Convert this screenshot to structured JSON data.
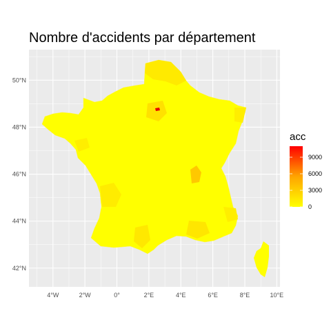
{
  "title": "Nombre d'accidents par département",
  "colors": {
    "panel_bg": "#EBEBEB",
    "grid": "#FFFFFF",
    "low": "#FFFF00",
    "mid": "#FFA500",
    "high": "#FF0000"
  },
  "axes": {
    "x_ticks": [
      "4°W",
      "2°W",
      "0°",
      "2°E",
      "4°E",
      "6°E",
      "8°E",
      "10°E"
    ],
    "y_ticks": [
      "42°N",
      "44°N",
      "46°N",
      "48°N",
      "50°N"
    ]
  },
  "legend": {
    "title": "acc",
    "ticks": [
      "9000",
      "6000",
      "3000",
      "0"
    ],
    "tick_values": [
      9000,
      6000,
      3000,
      0
    ],
    "max": 11000
  },
  "chart_data": {
    "type": "choropleth",
    "title": "Nombre d'accidents par département",
    "xlabel": "",
    "ylabel": "",
    "xlim": [
      -5.5,
      10.2
    ],
    "ylim": [
      41.2,
      51.3
    ],
    "fill_variable": "acc",
    "color_range": [
      0,
      11000
    ],
    "highlights": [
      {
        "area": "Paris",
        "acc": 11000
      },
      {
        "area": "Lyon (Rhône)",
        "acc": 2500
      }
    ],
    "typical_department_acc": 500
  }
}
